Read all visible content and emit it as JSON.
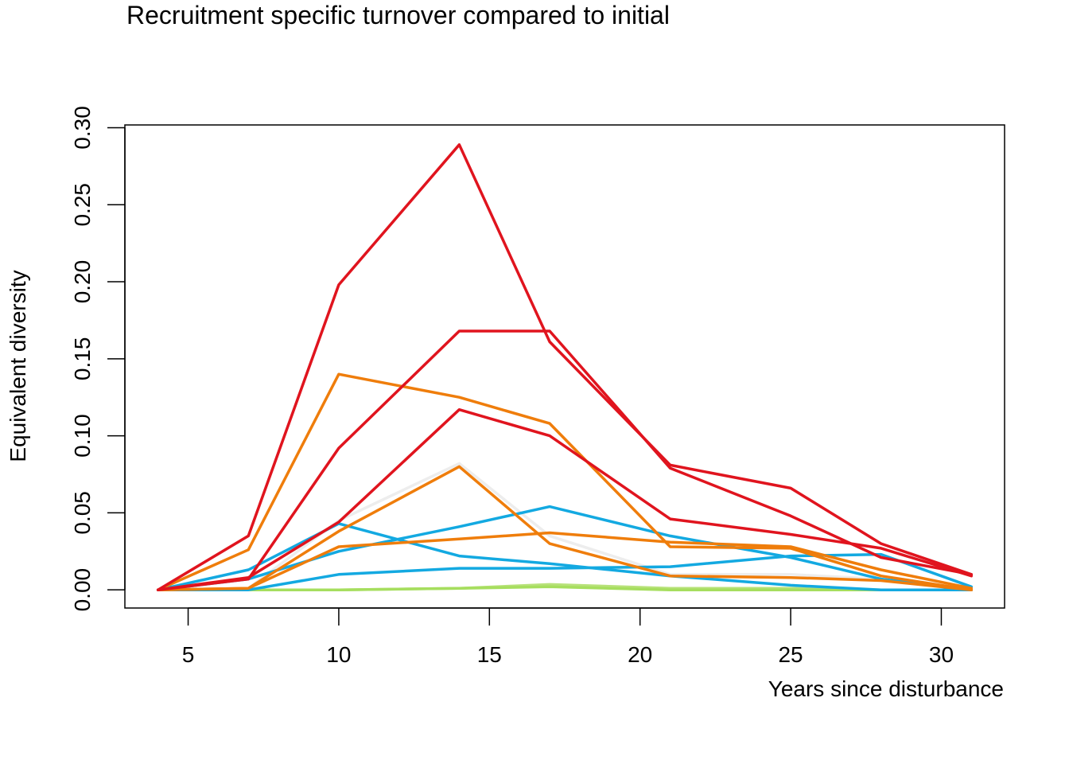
{
  "chart_data": {
    "type": "line",
    "title": "Recruitment specific turnover compared to initial",
    "xlabel": "Years since disturbance",
    "ylabel": "Equivalent diversity",
    "xlim": [
      2.9,
      32.1
    ],
    "ylim": [
      -0.0118,
      0.3018
    ],
    "x_ticks": [
      5,
      10,
      15,
      20,
      25,
      30
    ],
    "x_tick_labels": [
      "5",
      "10",
      "15",
      "20",
      "25",
      "30"
    ],
    "y_ticks": [
      0,
      0.05,
      0.1,
      0.15,
      0.2,
      0.25,
      0.3
    ],
    "y_tick_labels": [
      "0.00",
      "0.05",
      "0.10",
      "0.15",
      "0.20",
      "0.25",
      "0.30"
    ],
    "grid": false,
    "legend": "none",
    "x": [
      4,
      7,
      10,
      14,
      17,
      21,
      25,
      28,
      31
    ],
    "series": [
      {
        "color": "#b8e27a",
        "values": [
          0,
          0,
          0,
          0.001,
          0.0035,
          0.001,
          0.001,
          0,
          0
        ]
      },
      {
        "color": "#a6de5e",
        "values": [
          0,
          0,
          0,
          0.001,
          0.002,
          0,
          0,
          0,
          0
        ]
      },
      {
        "color": "#ededed",
        "values": [
          0,
          0.001,
          0.045,
          0.082,
          0.035,
          0.01,
          0.01,
          0.007,
          0
        ]
      },
      {
        "color": "#13a9e1",
        "values": [
          0,
          0,
          0.01,
          0.014,
          0.014,
          0.015,
          0.022,
          0.023,
          0.002
        ]
      },
      {
        "color": "#13a9e1",
        "values": [
          0,
          0.013,
          0.043,
          0.022,
          0.017,
          0.009,
          0.003,
          0,
          0
        ]
      },
      {
        "color": "#13a9e1",
        "values": [
          0,
          0.007,
          0.025,
          0.041,
          0.054,
          0.035,
          0.021,
          0.007,
          0
        ]
      },
      {
        "color": "#ef7d0b",
        "values": [
          0,
          0.001,
          0.028,
          0.033,
          0.037,
          0.031,
          0.028,
          0.013,
          0.001
        ]
      },
      {
        "color": "#ef7d0b",
        "values": [
          0,
          0.026,
          0.14,
          0.125,
          0.108,
          0.028,
          0.027,
          0.009,
          0
        ]
      },
      {
        "color": "#ef7d0b",
        "values": [
          0,
          0.001,
          0.038,
          0.08,
          0.03,
          0.009,
          0.008,
          0.006,
          0
        ]
      },
      {
        "color": "#e0141e",
        "values": [
          0,
          0.035,
          0.198,
          0.289,
          0.161,
          0.081,
          0.066,
          0.03,
          0.01
        ]
      },
      {
        "color": "#e0141e",
        "values": [
          0,
          0.007,
          0.092,
          0.168,
          0.168,
          0.079,
          0.048,
          0.021,
          0.01
        ]
      },
      {
        "color": "#e0141e",
        "values": [
          0,
          0.008,
          0.044,
          0.117,
          0.1,
          0.046,
          0.036,
          0.027,
          0.009
        ]
      }
    ]
  }
}
